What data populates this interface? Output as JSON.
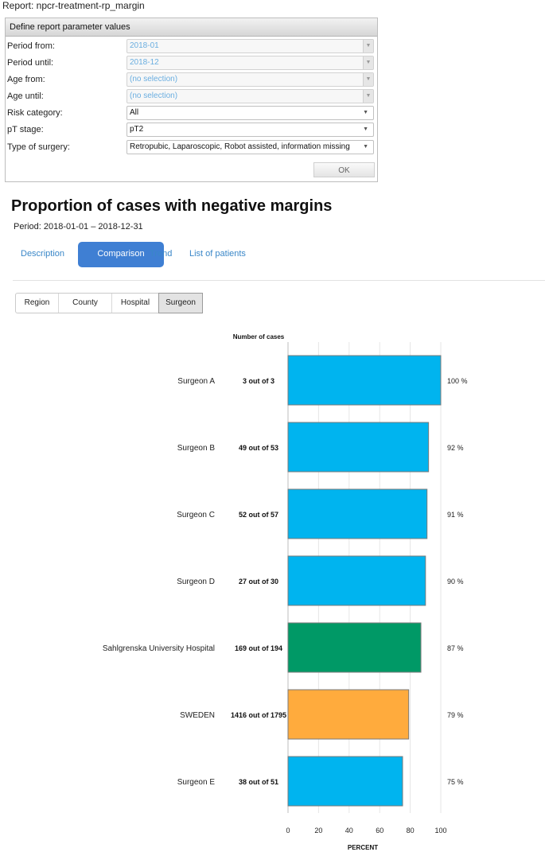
{
  "report": {
    "label": "Report: npcr-treatment-rp_margin"
  },
  "params": {
    "header": "Define report parameter values",
    "rows": [
      {
        "label": "Period from:",
        "value": "2018-01",
        "state": "disabled"
      },
      {
        "label": "Period until:",
        "value": "2018-12",
        "state": "disabled"
      },
      {
        "label": "Age from:",
        "value": "(no selection)",
        "state": "disabled"
      },
      {
        "label": "Age until:",
        "value": "(no selection)",
        "state": "disabled"
      },
      {
        "label": "Risk category:",
        "value": "All",
        "state": "active"
      },
      {
        "label": "pT stage:",
        "value": "pT2",
        "state": "active"
      },
      {
        "label": "Type of surgery:",
        "value": "Retropubic, Laparoscopic, Robot assisted, information missing",
        "state": "active"
      }
    ],
    "ok_label": "OK"
  },
  "page": {
    "title": "Proportion of cases with negative margins",
    "period": "Period: 2018-01-01 – 2018-12-31"
  },
  "tabs": [
    {
      "label": "Description",
      "active": false
    },
    {
      "label": "Comparison",
      "active": true
    },
    {
      "label": "Trend",
      "active": false
    },
    {
      "label": "List of patients",
      "active": false
    }
  ],
  "segments": [
    {
      "label": "Region",
      "active": false
    },
    {
      "label": "County",
      "active": false
    },
    {
      "label": "Hospital",
      "active": false
    },
    {
      "label": "Surgeon",
      "active": true
    }
  ],
  "chart_data": {
    "type": "bar",
    "orientation": "horizontal",
    "cases_header": "Number of cases",
    "xlabel": "PERCENT",
    "xlim": [
      0,
      100
    ],
    "xticks": [
      0,
      20,
      40,
      60,
      80,
      100
    ],
    "grid": true,
    "categories": [
      "Surgeon A",
      "Surgeon B",
      "Surgeon C",
      "Surgeon D",
      "Sahlgrenska University Hospital",
      "SWEDEN",
      "Surgeon E"
    ],
    "values": [
      100,
      92,
      91,
      90,
      87,
      79,
      75
    ],
    "value_labels": [
      "100 %",
      "92 %",
      "91 %",
      "90 %",
      "87 %",
      "79 %",
      "75 %"
    ],
    "cases": [
      "3 out of 3",
      "49 out of 53",
      "52 out of 57",
      "27 out of 30",
      "169 out of 194",
      "1416 out of 1795",
      "38 out of 51"
    ],
    "colors": [
      "#00b4ef",
      "#00b4ef",
      "#00b4ef",
      "#00b4ef",
      "#009966",
      "#ffab3d",
      "#00b4ef"
    ]
  }
}
